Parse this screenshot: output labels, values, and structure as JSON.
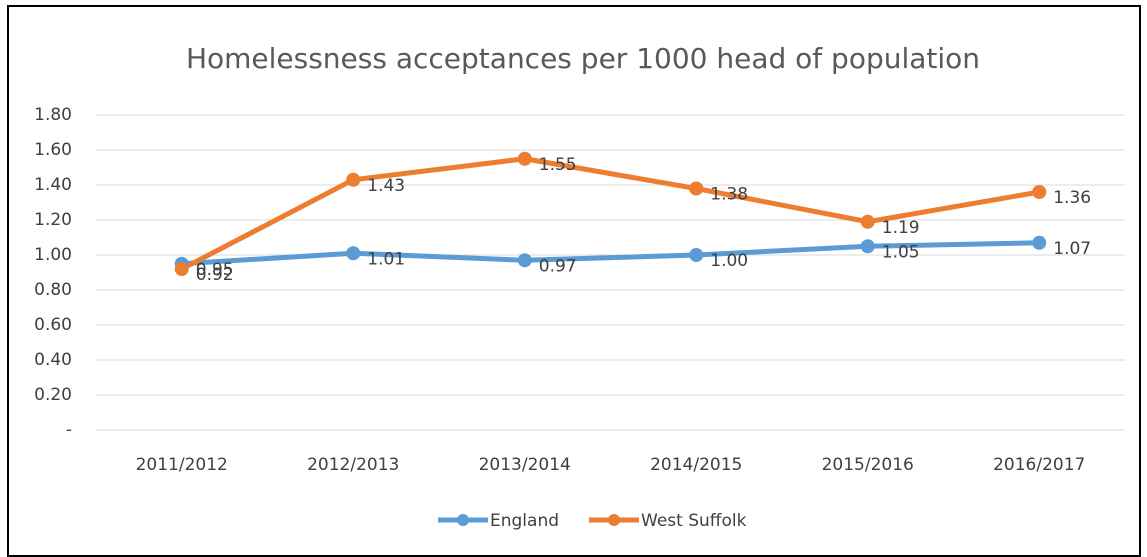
{
  "chart_data": {
    "type": "line",
    "title": "Homelessness  acceptances per 1000 head of population",
    "categories": [
      "2011/2012",
      "2012/2013",
      "2013/2014",
      "2014/2015",
      "2015/2016",
      "2016/2017"
    ],
    "series": [
      {
        "name": "England",
        "color": "#5b9bd5",
        "values": [
          0.95,
          1.01,
          0.97,
          1.0,
          1.05,
          1.07
        ],
        "value_labels": [
          "0.95",
          "1.01",
          "0.97",
          "1.00",
          "1.05",
          "1.07"
        ]
      },
      {
        "name": "West Suffolk",
        "color": "#ed7d31",
        "values": [
          0.92,
          1.43,
          1.55,
          1.38,
          1.19,
          1.36
        ],
        "value_labels": [
          "0.92",
          "1.43",
          "1.55",
          "1.38",
          "1.19",
          "1.36"
        ]
      }
    ],
    "ylim": [
      0,
      1.8
    ],
    "yticks": [
      {
        "value": 0,
        "label": "-"
      },
      {
        "value": 0.2,
        "label": "0.20"
      },
      {
        "value": 0.4,
        "label": "0.40"
      },
      {
        "value": 0.6,
        "label": "0.60"
      },
      {
        "value": 0.8,
        "label": "0.80"
      },
      {
        "value": 1.0,
        "label": "1.00"
      },
      {
        "value": 1.2,
        "label": "1.20"
      },
      {
        "value": 1.4,
        "label": "1.40"
      },
      {
        "value": 1.6,
        "label": "1.60"
      },
      {
        "value": 1.8,
        "label": "1.80"
      }
    ],
    "grid": true,
    "legend": "bottom"
  }
}
